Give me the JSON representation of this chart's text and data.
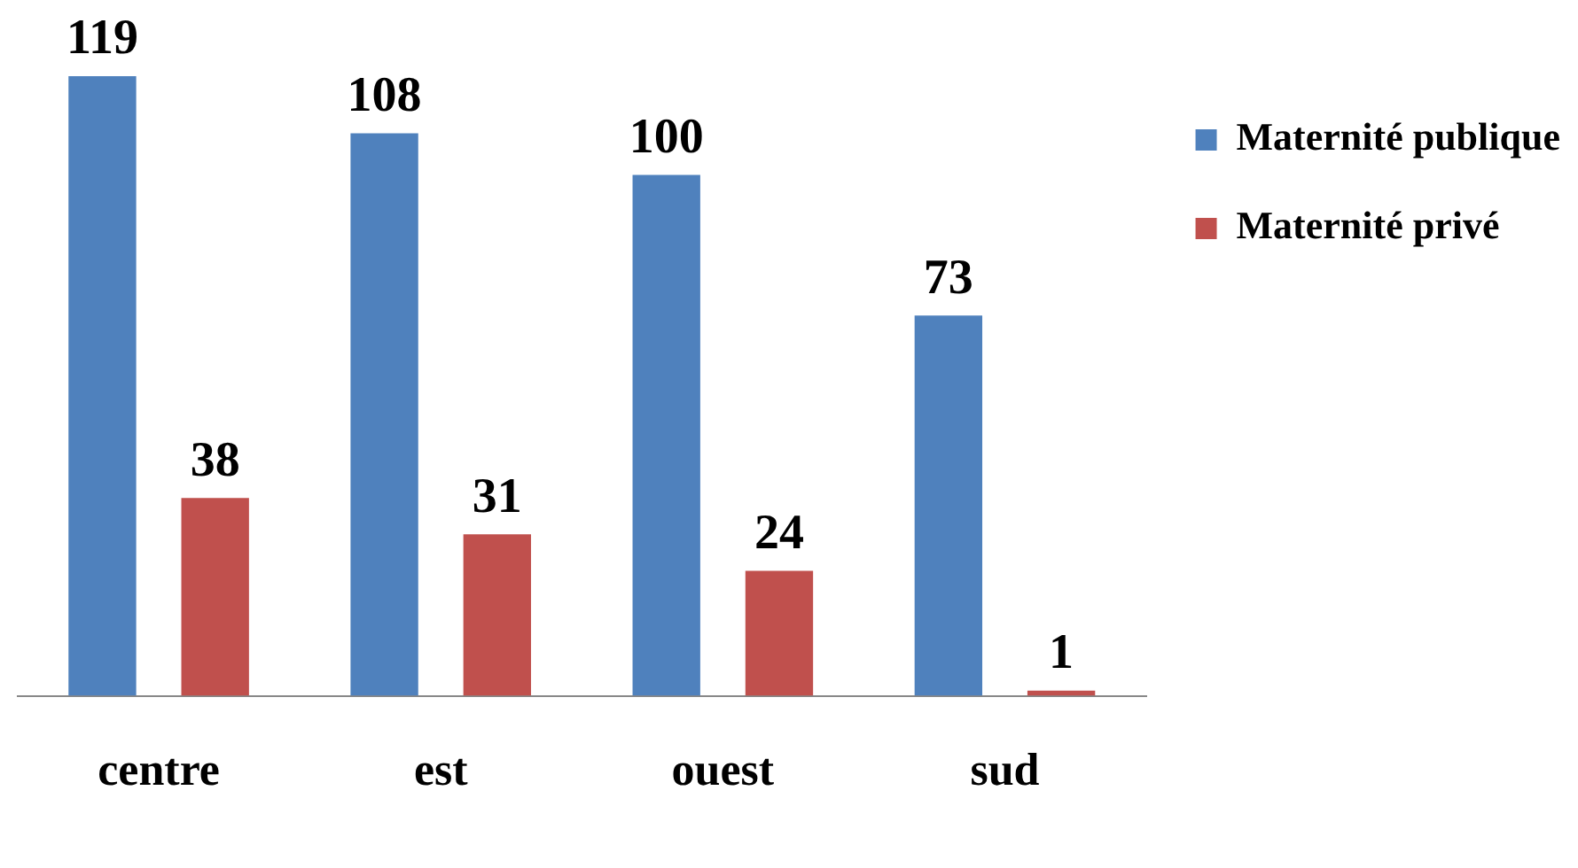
{
  "chart_data": {
    "type": "bar",
    "categories": [
      "centre",
      "est",
      "ouest",
      "sud"
    ],
    "series": [
      {
        "name": "Maternité publique",
        "color": "#4f81bd",
        "values": [
          119,
          108,
          100,
          73
        ]
      },
      {
        "name": "Maternité privé",
        "color": "#c0504d",
        "values": [
          38,
          31,
          24,
          1
        ]
      }
    ],
    "data_labels": true,
    "grid": false,
    "legend": "top right"
  }
}
